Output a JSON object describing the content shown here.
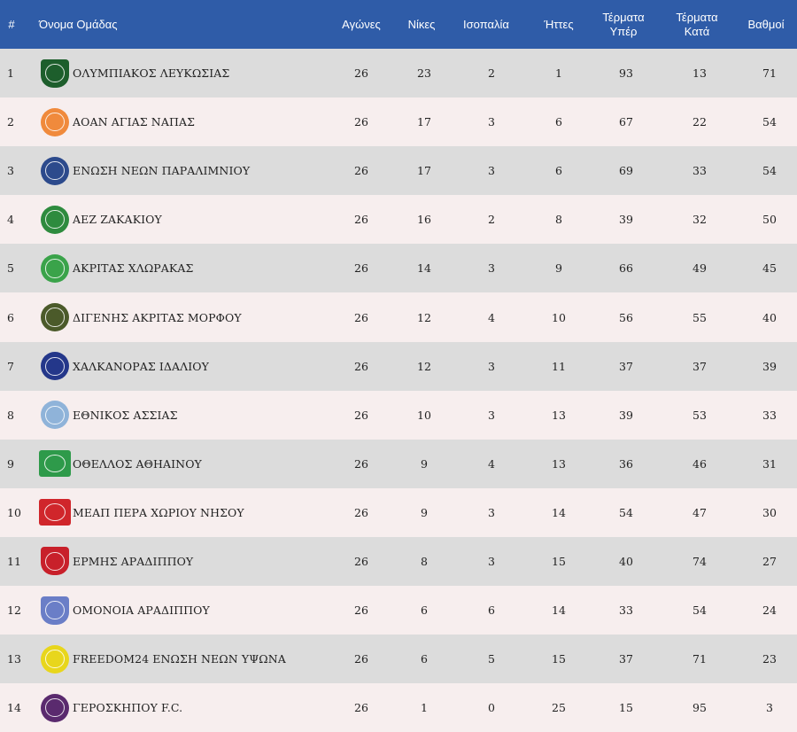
{
  "headers": {
    "rank": "#",
    "team": "Όνομα Ομάδας",
    "played": "Αγώνες",
    "wins": "Νίκες",
    "draws": "Ισοπαλία",
    "losses": "Ήττες",
    "goals_for_1": "Τέρματα",
    "goals_for_2": "Υπέρ",
    "goals_against_1": "Τέρματα",
    "goals_against_2": "Κατά",
    "points": "Βαθμοί"
  },
  "rows": [
    {
      "rank": "1",
      "team": "ΟΛΥΜΠΙΑΚΟΣ ΛΕΥΚΩΣΙΑΣ",
      "p": "26",
      "w": "23",
      "d": "2",
      "l": "1",
      "gf": "93",
      "ga": "13",
      "pts": "71",
      "logo": "olympiakos-logo",
      "color": "#1d5e2c",
      "shape": "shield"
    },
    {
      "rank": "2",
      "team": "ΑΟΑΝ ΑΓΙΑΣ ΝΑΠΑΣ",
      "p": "26",
      "w": "17",
      "d": "3",
      "l": "6",
      "gf": "67",
      "ga": "22",
      "pts": "54",
      "logo": "aoan-logo",
      "color": "#f08a3c",
      "shape": "circle"
    },
    {
      "rank": "3",
      "team": "ΕΝΩΣΗ ΝΕΩΝ ΠΑΡΑΛΙΜΝΙΟΥ",
      "p": "26",
      "w": "17",
      "d": "3",
      "l": "6",
      "gf": "69",
      "ga": "33",
      "pts": "54",
      "logo": "enp-logo",
      "color": "#2c4a8c",
      "shape": "circle"
    },
    {
      "rank": "4",
      "team": "ΑΕΖ ΖΑΚΑΚΙΟΥ",
      "p": "26",
      "w": "16",
      "d": "2",
      "l": "8",
      "gf": "39",
      "ga": "32",
      "pts": "50",
      "logo": "aez-logo",
      "color": "#2e8b3e",
      "shape": "circle"
    },
    {
      "rank": "5",
      "team": "ΑΚΡΙΤΑΣ ΧΛΩΡΑΚΑΣ",
      "p": "26",
      "w": "14",
      "d": "3",
      "l": "9",
      "gf": "66",
      "ga": "49",
      "pts": "45",
      "logo": "akritas-logo",
      "color": "#3aa34a",
      "shape": "circle"
    },
    {
      "rank": "6",
      "team": "ΔΙΓΕΝΗΣ ΑΚΡΙΤΑΣ ΜΟΡΦΟΥ",
      "p": "26",
      "w": "12",
      "d": "4",
      "l": "10",
      "gf": "56",
      "ga": "55",
      "pts": "40",
      "logo": "digenis-logo",
      "color": "#4b5a2a",
      "shape": "circle"
    },
    {
      "rank": "7",
      "team": "ΧΑΛΚΑΝΟΡΑΣ ΙΔΑΛΙΟΥ",
      "p": "26",
      "w": "12",
      "d": "3",
      "l": "11",
      "gf": "37",
      "ga": "37",
      "pts": "39",
      "logo": "chalkanoras-logo",
      "color": "#24378a",
      "shape": "circle"
    },
    {
      "rank": "8",
      "team": "ΕΘΝΙΚΟΣ ΑΣΣΙΑΣ",
      "p": "26",
      "w": "10",
      "d": "3",
      "l": "13",
      "gf": "39",
      "ga": "53",
      "pts": "33",
      "logo": "ethnikos-logo",
      "color": "#8fb3d9",
      "shape": "circle"
    },
    {
      "rank": "9",
      "team": "ΟΘΕΛΛΟΣ ΑΘΗΑΙΝΟΥ",
      "p": "26",
      "w": "9",
      "d": "4",
      "l": "13",
      "gf": "36",
      "ga": "46",
      "pts": "31",
      "logo": "othellos-logo",
      "color": "#2e9a4a",
      "shape": "wide"
    },
    {
      "rank": "10",
      "team": "ΜΕΑΠ ΠΕΡΑ ΧΩΡΙΟΥ ΝΗΣΟΥ",
      "p": "26",
      "w": "9",
      "d": "3",
      "l": "14",
      "gf": "54",
      "ga": "47",
      "pts": "30",
      "logo": "meap-logo",
      "color": "#d0262b",
      "shape": "wide"
    },
    {
      "rank": "11",
      "team": "ΕΡΜΗΣ ΑΡΑΔΙΠΠΟΥ",
      "p": "26",
      "w": "8",
      "d": "3",
      "l": "15",
      "gf": "40",
      "ga": "74",
      "pts": "27",
      "logo": "ermis-logo",
      "color": "#c8202a",
      "shape": "shield"
    },
    {
      "rank": "12",
      "team": "ΟΜΟΝΟΙΑ ΑΡΑΔΙΠΠΟΥ",
      "p": "26",
      "w": "6",
      "d": "6",
      "l": "14",
      "gf": "33",
      "ga": "54",
      "pts": "24",
      "logo": "omonoia-logo",
      "color": "#6a7ec7",
      "shape": "shield"
    },
    {
      "rank": "13",
      "team": "FREEDOM24 ΕΝΩΣΗ ΝΕΩΝ ΥΨΩΝΑ",
      "p": "26",
      "w": "6",
      "d": "5",
      "l": "15",
      "gf": "37",
      "ga": "71",
      "pts": "23",
      "logo": "freedom24-logo",
      "color": "#e8d61c",
      "shape": "circle"
    },
    {
      "rank": "14",
      "team": "ΓΕΡΟΣΚΗΠΟΥ F.C.",
      "p": "26",
      "w": "1",
      "d": "0",
      "l": "25",
      "gf": "15",
      "ga": "95",
      "pts": "3",
      "logo": "geroskipou-logo",
      "color": "#5a2a6e",
      "shape": "circle"
    }
  ]
}
